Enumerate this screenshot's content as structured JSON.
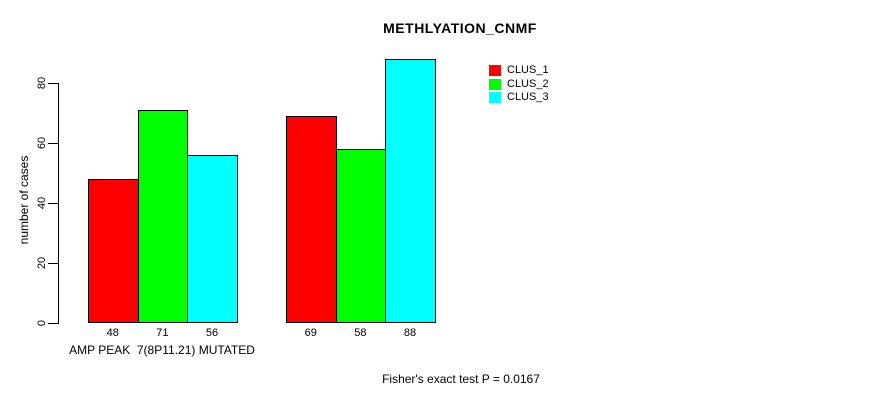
{
  "chart_data": {
    "type": "bar",
    "title": "METHLYATION_CNMF",
    "ylabel": "number of cases",
    "ylim": [
      0,
      88
    ],
    "yticks": [
      0,
      20,
      40,
      60,
      80
    ],
    "grid": false,
    "legend_position": "top-right-outside",
    "categories": [
      "AMP PEAK  7(8P11.21) MUTATED",
      ""
    ],
    "series": [
      {
        "name": "CLUS_1",
        "color": "#ff0000",
        "values": [
          48,
          69
        ]
      },
      {
        "name": "CLUS_2",
        "color": "#00ff00",
        "values": [
          71,
          58
        ]
      },
      {
        "name": "CLUS_3",
        "color": "#00ffff",
        "values": [
          56,
          88
        ]
      }
    ],
    "bar_value_labels": [
      [
        48,
        71,
        56
      ],
      [
        69,
        58,
        88
      ]
    ],
    "annotation": "Fisher's exact test P = 0.0167",
    "axis_color": "#000000",
    "text_color": "#000000",
    "background_color": "#ffffff"
  }
}
